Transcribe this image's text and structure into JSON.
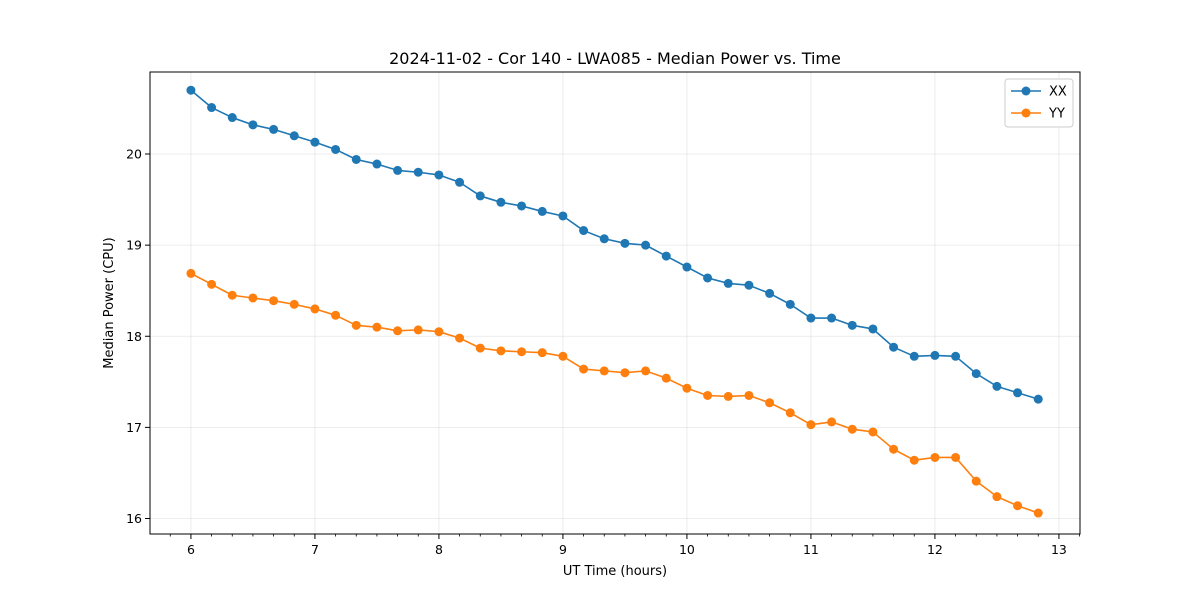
{
  "chart_data": {
    "type": "line",
    "title": "2024-11-02 - Cor 140 - LWA085 - Median Power vs. Time",
    "xlabel": "UT Time (hours)",
    "ylabel": "Median Power (CPU)",
    "xlim": [
      5.67,
      13.17
    ],
    "ylim": [
      15.83,
      20.9
    ],
    "xticks": [
      6,
      7,
      8,
      9,
      10,
      11,
      12,
      13
    ],
    "yticks": [
      16,
      17,
      18,
      19,
      20
    ],
    "grid": true,
    "legend_position": "top-right",
    "x": [
      6.0,
      6.1667,
      6.3333,
      6.5,
      6.6667,
      6.8333,
      7.0,
      7.1667,
      7.3333,
      7.5,
      7.6667,
      7.8333,
      8.0,
      8.1667,
      8.3333,
      8.5,
      8.6667,
      8.8333,
      9.0,
      9.1667,
      9.3333,
      9.5,
      9.6667,
      9.8333,
      10.0,
      10.1667,
      10.3333,
      10.5,
      10.6667,
      10.8333,
      11.0,
      11.1667,
      11.3333,
      11.5,
      11.6667,
      11.8333,
      12.0,
      12.1667,
      12.3333,
      12.5,
      12.6667,
      12.8333
    ],
    "series": [
      {
        "name": "XX",
        "color": "#1f77b4",
        "values": [
          20.7,
          20.51,
          20.4,
          20.32,
          20.27,
          20.2,
          20.13,
          20.05,
          19.94,
          19.89,
          19.82,
          19.8,
          19.77,
          19.69,
          19.54,
          19.47,
          19.43,
          19.37,
          19.32,
          19.16,
          19.07,
          19.02,
          19.0,
          18.88,
          18.76,
          18.64,
          18.58,
          18.56,
          18.47,
          18.35,
          18.2,
          18.2,
          18.12,
          18.08,
          17.88,
          17.78,
          17.79,
          17.78,
          17.59,
          17.45,
          17.38,
          17.31
        ]
      },
      {
        "name": "YY",
        "color": "#ff7f0e",
        "values": [
          18.69,
          18.57,
          18.45,
          18.42,
          18.39,
          18.35,
          18.3,
          18.23,
          18.12,
          18.1,
          18.06,
          18.07,
          18.05,
          17.98,
          17.87,
          17.84,
          17.83,
          17.82,
          17.78,
          17.64,
          17.62,
          17.6,
          17.62,
          17.54,
          17.43,
          17.35,
          17.34,
          17.35,
          17.27,
          17.16,
          17.03,
          17.06,
          16.98,
          16.95,
          16.76,
          16.64,
          16.67,
          16.67,
          16.41,
          16.24,
          16.14,
          16.06
        ]
      }
    ]
  }
}
